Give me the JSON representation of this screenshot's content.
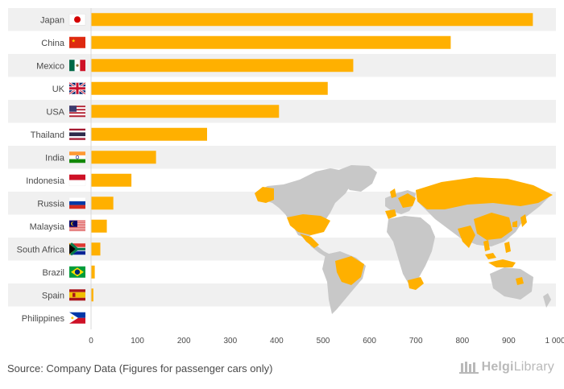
{
  "chart_data": {
    "type": "bar",
    "orientation": "horizontal",
    "categories": [
      "Japan",
      "China",
      "Mexico",
      "UK",
      "USA",
      "Thailand",
      "India",
      "Indonesia",
      "Russia",
      "Malaysia",
      "South Africa",
      "Brazil",
      "Spain",
      "Philippines"
    ],
    "values": [
      952,
      775,
      565,
      510,
      405,
      250,
      140,
      87,
      48,
      34,
      20,
      8,
      5,
      0
    ],
    "xlim": [
      0,
      1000
    ],
    "xticks": [
      "0",
      "100",
      "200",
      "300",
      "400",
      "500",
      "600",
      "700",
      "800",
      "900",
      "1 000"
    ],
    "bar_color": "#FFB000",
    "highlight_color": "#FFB000",
    "map_base_color": "#C8C8C8"
  },
  "footer": {
    "source": "Source: Company Data (Figures for passenger cars only)",
    "logo_brand": "Helgi",
    "logo_suffix": "Library"
  }
}
